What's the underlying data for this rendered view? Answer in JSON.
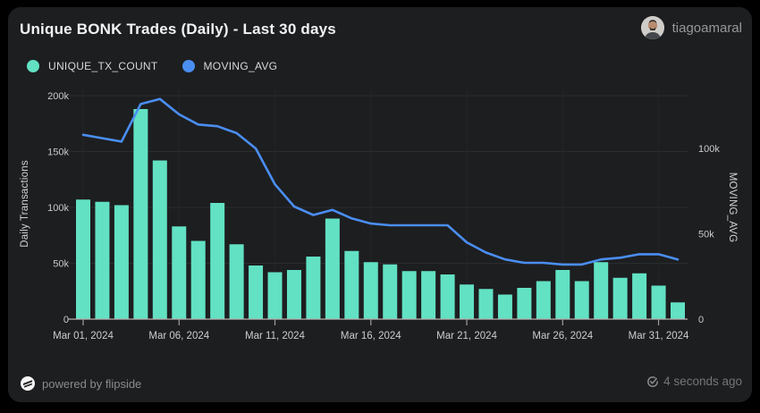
{
  "header": {
    "title": "Unique BONK Trades (Daily) - Last 30 days",
    "username": "tiagoamaral"
  },
  "legend": [
    {
      "label": "UNIQUE_TX_COUNT",
      "color": "#62e1c3"
    },
    {
      "label": "MOVING_AVG",
      "color": "#4a8ef2"
    }
  ],
  "footer": {
    "powered_by": "powered by flipside",
    "refreshed": "4 seconds ago"
  },
  "colors": {
    "card_bg": "#1d1e20",
    "page_bg": "#000000",
    "bar": "#62e1c3",
    "line": "#4a8ef2",
    "axis_text": "#c9cacc",
    "baseline": "#b9b1b1"
  },
  "chart_data": {
    "type": "bar",
    "title": "Unique BONK Trades (Daily) - Last 30 days",
    "categories": [
      "Mar 01, 2024",
      "Mar 02, 2024",
      "Mar 03, 2024",
      "Mar 04, 2024",
      "Mar 05, 2024",
      "Mar 06, 2024",
      "Mar 07, 2024",
      "Mar 08, 2024",
      "Mar 09, 2024",
      "Mar 10, 2024",
      "Mar 11, 2024",
      "Mar 12, 2024",
      "Mar 13, 2024",
      "Mar 14, 2024",
      "Mar 15, 2024",
      "Mar 16, 2024",
      "Mar 17, 2024",
      "Mar 18, 2024",
      "Mar 19, 2024",
      "Mar 20, 2024",
      "Mar 21, 2024",
      "Mar 22, 2024",
      "Mar 23, 2024",
      "Mar 24, 2024",
      "Mar 25, 2024",
      "Mar 26, 2024",
      "Mar 27, 2024",
      "Mar 28, 2024",
      "Mar 29, 2024",
      "Mar 30, 2024",
      "Mar 31, 2024",
      "Apr 01, 2024"
    ],
    "series": [
      {
        "name": "UNIQUE_TX_COUNT",
        "type": "bar",
        "axis": "left",
        "color": "#62e1c3",
        "values": [
          107000,
          105000,
          102000,
          188000,
          142000,
          83000,
          70000,
          104000,
          67000,
          48000,
          42000,
          44000,
          56000,
          90000,
          61000,
          51000,
          49000,
          43000,
          43000,
          40000,
          31000,
          27000,
          22000,
          28000,
          34000,
          44000,
          34000,
          51000,
          37000,
          41000,
          30000,
          15000
        ]
      },
      {
        "name": "MOVING_AVG",
        "type": "line",
        "axis": "right",
        "color": "#4a8ef2",
        "values": [
          108000,
          106000,
          104000,
          126000,
          129000,
          120000,
          114000,
          113000,
          109000,
          100000,
          79000,
          66000,
          61000,
          64000,
          59000,
          56000,
          55000,
          55000,
          55000,
          55000,
          45000,
          39000,
          35000,
          33000,
          33000,
          32000,
          32000,
          35000,
          36000,
          38000,
          38000,
          35000
        ]
      }
    ],
    "left_axis": {
      "label": "Daily Transactions",
      "ticks": [
        "0",
        "50k",
        "100k",
        "150k",
        "200k"
      ],
      "tick_values": [
        0,
        50000,
        100000,
        150000,
        200000
      ],
      "max": 205600
    },
    "right_axis": {
      "label": "MOVING_AVG",
      "ticks": [
        "0",
        "50k",
        "100k"
      ],
      "tick_values": [
        0,
        50000,
        100000
      ],
      "max": 134600
    },
    "x_ticks": [
      "Mar 01, 2024",
      "Mar 06, 2024",
      "Mar 11, 2024",
      "Mar 16, 2024",
      "Mar 21, 2024",
      "Mar 26, 2024",
      "Mar 31, 2024"
    ],
    "x_tick_indices": [
      0,
      5,
      10,
      15,
      20,
      25,
      30
    ],
    "grid": true,
    "legend_position": "top-left"
  }
}
